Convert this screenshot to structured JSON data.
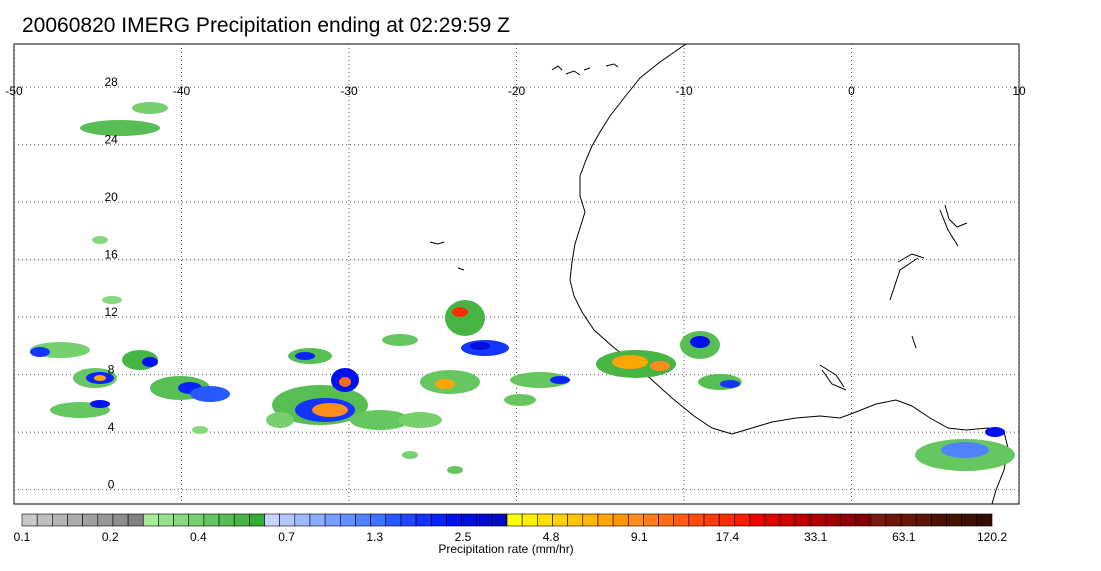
{
  "title": "20060820 IMERG Precipitation ending at 02:29:59 Z",
  "map": {
    "lon_range": [
      -50,
      10
    ],
    "lat_range": [
      -1,
      31
    ],
    "lon_ticks": [
      "-50",
      "-40",
      "-30",
      "-20",
      "-10",
      "0",
      "10"
    ],
    "lat_ticks": [
      "0",
      "4",
      "8",
      "12",
      "16",
      "20",
      "24",
      "28"
    ],
    "grid": "dotted",
    "coastline": "West Africa"
  },
  "colorbar": {
    "label": "Precipitation rate (mm/hr)",
    "ticks": [
      "0.1",
      "0.2",
      "0.4",
      "0.7",
      "1.3",
      "2.5",
      "4.8",
      "9.1",
      "17.4",
      "33.1",
      "63.1",
      "120.2"
    ],
    "colors": [
      "#c8c8c8",
      "#bebebe",
      "#b4b4b4",
      "#aaaaaa",
      "#a0a0a0",
      "#969696",
      "#8c8c8c",
      "#828282",
      "#a6eb98",
      "#96e28a",
      "#86d97c",
      "#76d06e",
      "#66c760",
      "#56be52",
      "#46b544",
      "#36ac36",
      "#c8d6ff",
      "#b4c8ff",
      "#a0baff",
      "#8cacff",
      "#789eff",
      "#6490ff",
      "#5082ff",
      "#3c74ff",
      "#2858ff",
      "#1e46ff",
      "#1434ff",
      "#0a22ff",
      "#0010f0",
      "#000ee0",
      "#000cd0",
      "#000ac0",
      "#ffff00",
      "#fff000",
      "#ffe100",
      "#ffd200",
      "#ffc300",
      "#ffb400",
      "#ffa500",
      "#ff9600",
      "#ff8c1e",
      "#ff7c1a",
      "#ff6c16",
      "#ff5c12",
      "#ff4c0e",
      "#ff3c0a",
      "#ff2c06",
      "#ff1c02",
      "#f00000",
      "#e00000",
      "#d00000",
      "#c00000",
      "#b00000",
      "#a00000",
      "#900000",
      "#800000",
      "#7a1a0a",
      "#701808",
      "#661606",
      "#5c1404",
      "#521202",
      "#481000",
      "#3e0e00",
      "#340c00"
    ]
  }
}
